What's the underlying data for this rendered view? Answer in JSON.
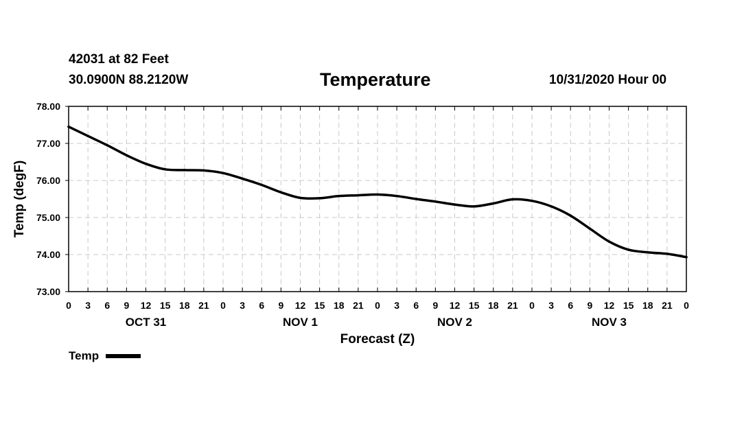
{
  "header": {
    "station": "42031 at 82 Feet",
    "coords": "30.0900N 88.2120W",
    "title": "Temperature",
    "date": "10/31/2020 Hour 00"
  },
  "chart_data": {
    "type": "line",
    "title": "Temperature",
    "xlabel": "Forecast (Z)",
    "ylabel": "Temp (degF)",
    "ylim": [
      73.0,
      78.0
    ],
    "xlim": [
      0,
      96
    ],
    "y_ticks": [
      "73.00",
      "74.00",
      "75.00",
      "76.00",
      "77.00",
      "78.00"
    ],
    "x_ticks": [
      "0",
      "3",
      "6",
      "9",
      "12",
      "15",
      "18",
      "21",
      "0",
      "3",
      "6",
      "9",
      "12",
      "15",
      "18",
      "21",
      "0",
      "3",
      "6",
      "9",
      "12",
      "15",
      "18",
      "21",
      "0",
      "3",
      "6",
      "9",
      "12",
      "15",
      "18",
      "21",
      "0"
    ],
    "day_labels": [
      {
        "label": "OCT 31",
        "hour": 12
      },
      {
        "label": "NOV 1",
        "hour": 36
      },
      {
        "label": "NOV 2",
        "hour": 60
      },
      {
        "label": "NOV 3",
        "hour": 84
      }
    ],
    "grid": true,
    "legend": "bottom-left",
    "series": [
      {
        "name": "Temp",
        "color": "#000000",
        "x": [
          0,
          3,
          6,
          9,
          12,
          15,
          18,
          21,
          24,
          27,
          30,
          33,
          36,
          39,
          42,
          45,
          48,
          51,
          54,
          57,
          60,
          63,
          66,
          69,
          72,
          75,
          78,
          81,
          84,
          87,
          90,
          93,
          96
        ],
        "values": [
          77.45,
          77.2,
          76.95,
          76.68,
          76.45,
          76.3,
          76.28,
          76.27,
          76.2,
          76.05,
          75.88,
          75.68,
          75.53,
          75.52,
          75.58,
          75.6,
          75.62,
          75.58,
          75.5,
          75.43,
          75.35,
          75.3,
          75.38,
          75.49,
          75.45,
          75.3,
          75.05,
          74.7,
          74.35,
          74.13,
          74.06,
          74.02,
          73.93
        ]
      }
    ]
  }
}
